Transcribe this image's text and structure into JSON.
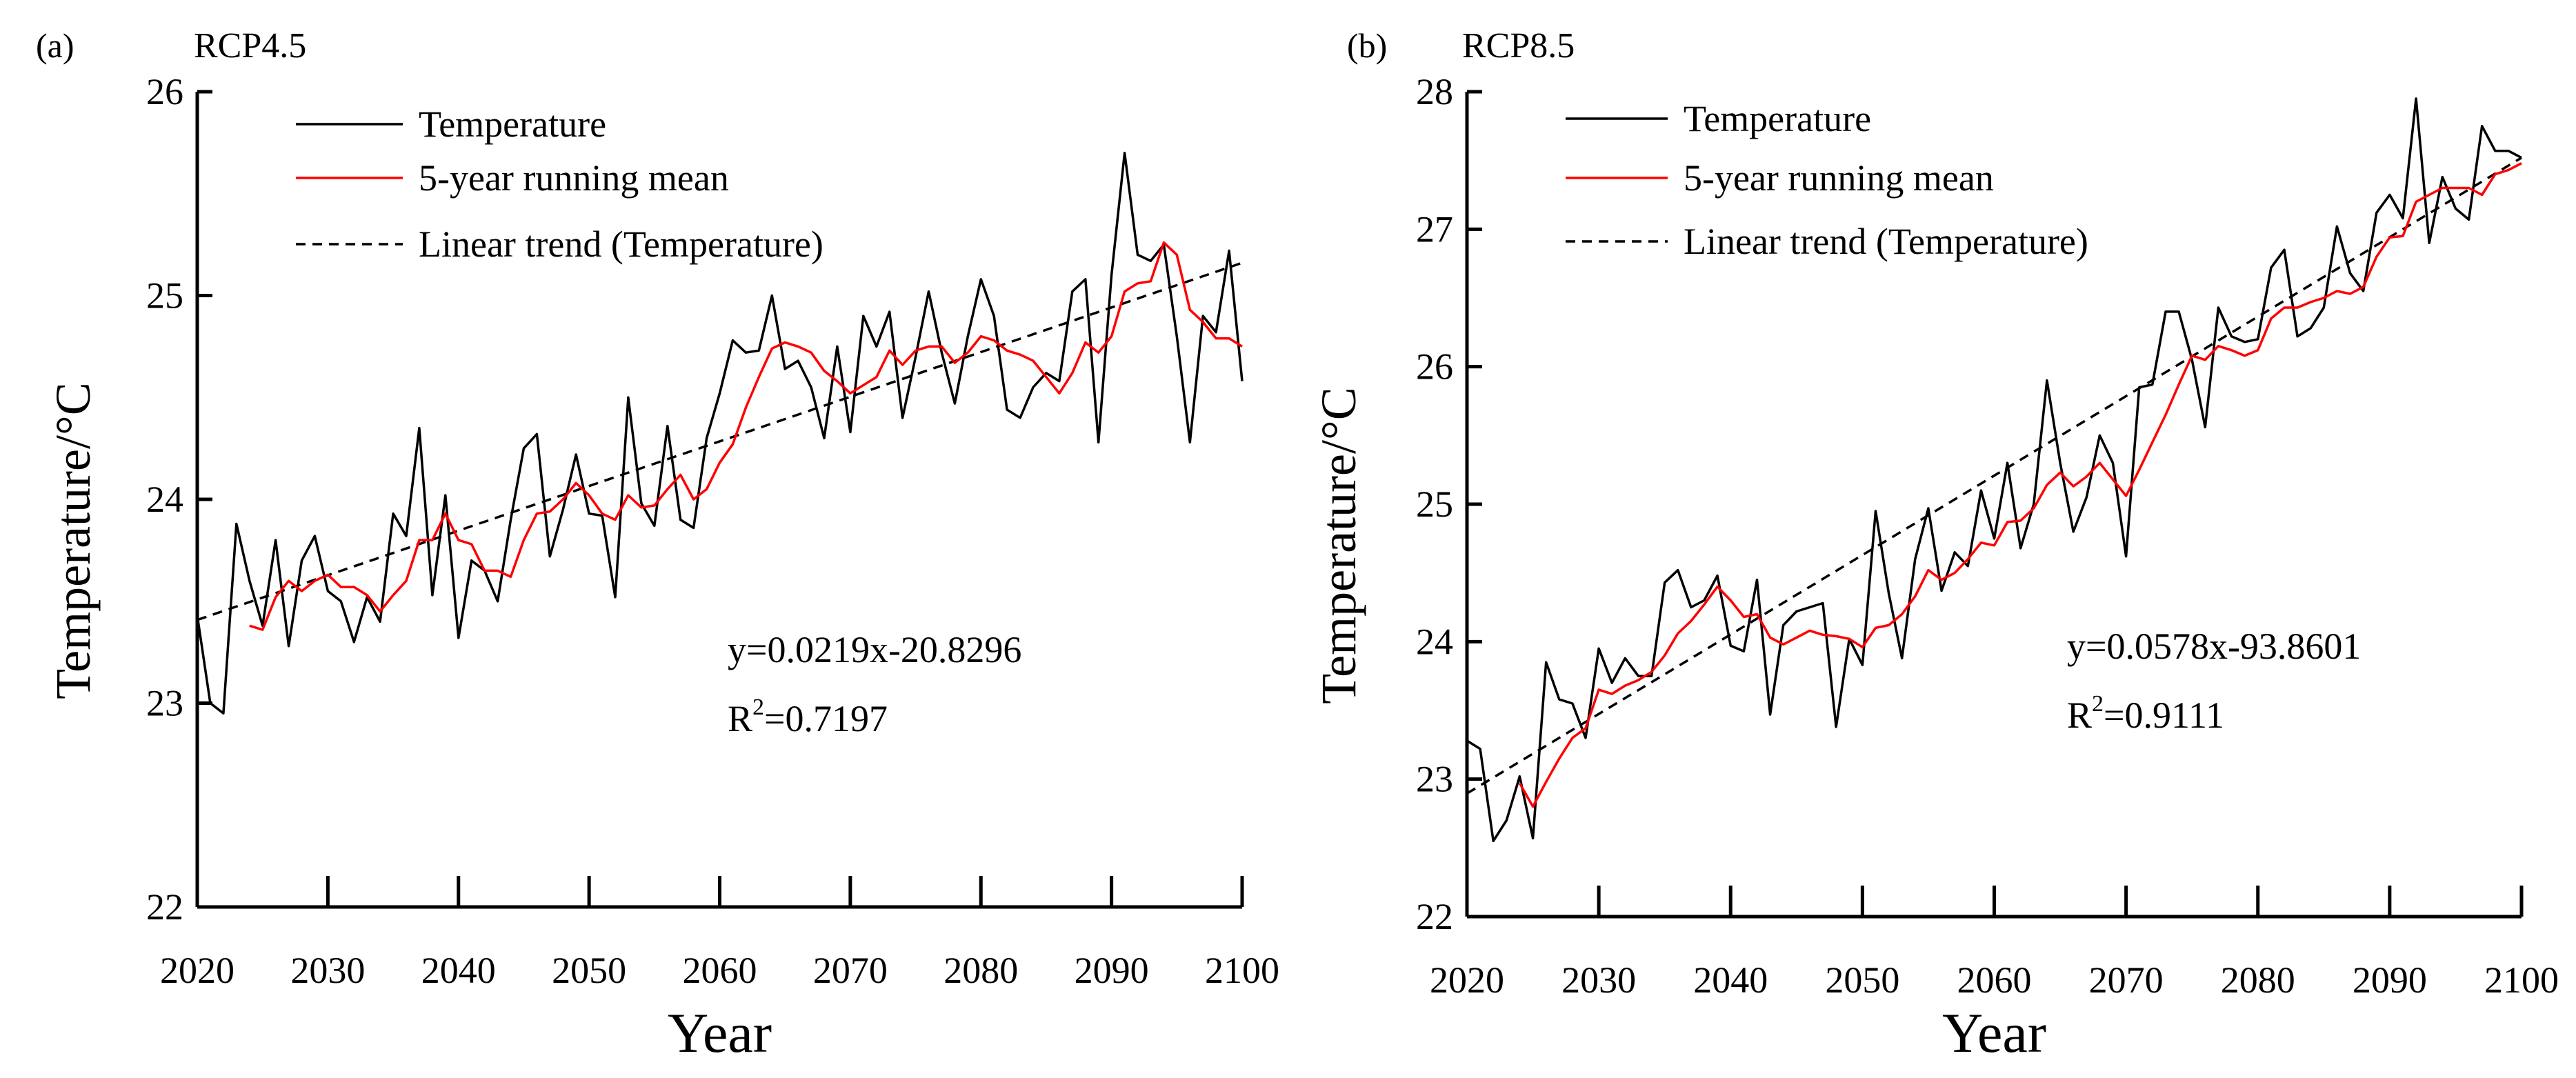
{
  "chart_data": [
    {
      "type": "line",
      "panel_label": "(a)",
      "title": "RCP4.5",
      "xlabel": "Year",
      "ylabel": "Temperature/°C",
      "xlim": [
        2020,
        2100
      ],
      "ylim": [
        22,
        26
      ],
      "xticks": [
        "2020",
        "2030",
        "2040",
        "2050",
        "2060",
        "2070",
        "2080",
        "2090",
        "2100"
      ],
      "yticks": [
        "22",
        "23",
        "24",
        "25",
        "26"
      ],
      "legend": [
        "Temperature",
        "5-year running mean",
        "Linear trend (Temperature)"
      ],
      "legend_placement": "top-left",
      "equation": "y=0.0219x-20.8296",
      "r2_prefix": "R",
      "r2_sup": "2",
      "r2_value": "=0.7197",
      "trend": {
        "slope": 0.0219,
        "intercept": -20.8296
      },
      "colors": {
        "temperature": "#000000",
        "running_mean": "#ff0000",
        "trend": "#000000"
      },
      "series": [
        {
          "name": "Temperature",
          "x_start": 2020,
          "values": [
            23.43,
            23.0,
            22.95,
            23.88,
            23.6,
            23.38,
            23.8,
            23.28,
            23.7,
            23.82,
            23.55,
            23.5,
            23.3,
            23.52,
            23.4,
            23.93,
            23.82,
            24.35,
            23.53,
            24.02,
            23.32,
            23.7,
            23.65,
            23.5,
            23.9,
            24.25,
            24.32,
            23.72,
            23.95,
            24.22,
            23.93,
            23.92,
            23.52,
            24.5,
            23.98,
            23.87,
            24.36,
            23.9,
            23.86,
            24.3,
            24.52,
            24.78,
            24.72,
            24.73,
            25.0,
            24.64,
            24.68,
            24.55,
            24.3,
            24.75,
            24.33,
            24.9,
            24.75,
            24.92,
            24.4,
            24.7,
            25.02,
            24.72,
            24.47,
            24.8,
            25.08,
            24.9,
            24.44,
            24.4,
            24.55,
            24.62,
            24.58,
            25.02,
            25.08,
            24.28,
            25.1,
            25.7,
            25.2,
            25.17,
            25.25,
            24.8,
            24.28,
            24.9,
            24.82,
            25.22,
            24.58
          ]
        },
        {
          "name": "5-year running mean",
          "x_start": 2024,
          "values": [
            23.38,
            23.36,
            23.52,
            23.6,
            23.55,
            23.6,
            23.63,
            23.57,
            23.57,
            23.53,
            23.45,
            23.53,
            23.6,
            23.8,
            23.8,
            23.93,
            23.8,
            23.78,
            23.65,
            23.65,
            23.62,
            23.8,
            23.93,
            23.94,
            24.0,
            24.08,
            24.02,
            23.93,
            23.9,
            24.02,
            23.96,
            23.97,
            24.05,
            24.12,
            24.0,
            24.05,
            24.18,
            24.27,
            24.45,
            24.6,
            24.74,
            24.77,
            24.75,
            24.72,
            24.63,
            24.58,
            24.52,
            24.56,
            24.6,
            24.73,
            24.66,
            24.73,
            24.75,
            24.75,
            24.67,
            24.72,
            24.8,
            24.78,
            24.73,
            24.71,
            24.68,
            24.6,
            24.52,
            24.62,
            24.77,
            24.72,
            24.8,
            25.02,
            25.06,
            25.07,
            25.26,
            25.2,
            24.93,
            24.87,
            24.79,
            24.79,
            24.75
          ]
        }
      ]
    },
    {
      "type": "line",
      "panel_label": "(b)",
      "title": "RCP8.5",
      "xlabel": "Year",
      "ylabel": "Temperature/°C",
      "xlim": [
        2020,
        2100
      ],
      "ylim": [
        22,
        28
      ],
      "xticks": [
        "2020",
        "2030",
        "2040",
        "2050",
        "2060",
        "2070",
        "2080",
        "2090",
        "2100"
      ],
      "yticks": [
        "22",
        "23",
        "24",
        "25",
        "26",
        "27",
        "28"
      ],
      "legend": [
        "Temperature",
        "5-year running mean",
        "Linear trend (Temperature)"
      ],
      "legend_placement": "top-left",
      "equation": "y=0.0578x-93.8601",
      "r2_prefix": "R",
      "r2_sup": "2",
      "r2_value": "=0.9111",
      "trend": {
        "slope": 0.0578,
        "intercept": -93.8601
      },
      "colors": {
        "temperature": "#000000",
        "running_mean": "#ff0000",
        "trend": "#000000"
      },
      "series": [
        {
          "name": "Temperature",
          "x_start": 2020,
          "values": [
            23.28,
            23.22,
            22.55,
            22.7,
            23.02,
            22.57,
            23.85,
            23.58,
            23.55,
            23.3,
            23.95,
            23.7,
            23.88,
            23.75,
            23.75,
            24.43,
            24.52,
            24.25,
            24.3,
            24.48,
            23.97,
            23.93,
            24.45,
            23.47,
            24.12,
            24.22,
            24.25,
            24.28,
            23.38,
            24.02,
            23.83,
            24.95,
            24.35,
            23.88,
            24.6,
            24.97,
            24.37,
            24.65,
            24.55,
            25.1,
            24.75,
            25.3,
            24.68,
            25.0,
            25.9,
            25.3,
            24.8,
            25.05,
            25.5,
            25.3,
            24.62,
            25.85,
            25.87,
            26.4,
            26.4,
            26.05,
            25.56,
            26.43,
            26.22,
            26.18,
            26.2,
            26.72,
            26.85,
            26.22,
            26.28,
            26.43,
            27.02,
            26.68,
            26.55,
            27.12,
            27.25,
            27.08,
            27.95,
            26.9,
            27.38,
            27.15,
            27.07,
            27.75,
            27.57,
            27.57,
            27.52
          ]
        },
        {
          "name": "5-year running mean",
          "x_start": 2024,
          "values": [
            22.97,
            22.8,
            22.98,
            23.15,
            23.3,
            23.37,
            23.65,
            23.62,
            23.68,
            23.72,
            23.78,
            23.9,
            24.06,
            24.15,
            24.27,
            24.4,
            24.3,
            24.18,
            24.2,
            24.03,
            23.98,
            24.03,
            24.08,
            24.05,
            24.04,
            24.02,
            23.96,
            24.1,
            24.12,
            24.2,
            24.33,
            24.52,
            24.45,
            24.5,
            24.6,
            24.72,
            24.7,
            24.87,
            24.88,
            24.97,
            25.14,
            25.23,
            25.13,
            25.2,
            25.3,
            25.18,
            25.06,
            25.25,
            25.45,
            25.65,
            25.87,
            26.08,
            26.05,
            26.15,
            26.12,
            26.08,
            26.12,
            26.35,
            26.43,
            26.43,
            26.47,
            26.5,
            26.55,
            26.53,
            26.58,
            26.8,
            26.94,
            26.95,
            27.2,
            27.25,
            27.3,
            27.3,
            27.3,
            27.25,
            27.4,
            27.43,
            27.48
          ]
        }
      ]
    }
  ]
}
